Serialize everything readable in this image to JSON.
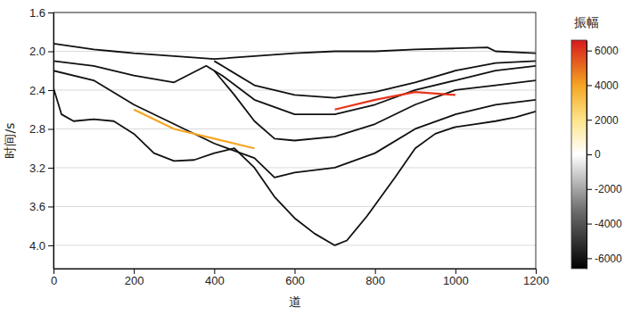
{
  "chart_data": {
    "type": "line",
    "x_label": "道",
    "y_label": "时间/s",
    "xlim": [
      0,
      1200
    ],
    "ylim": [
      1.6,
      4.24
    ],
    "xticks": [
      0,
      200,
      400,
      600,
      800,
      1000,
      1200
    ],
    "yticks": [
      1.6,
      {
        "value": 2,
        "label": "2.0"
      },
      2.4,
      2.8,
      3.2,
      3.6,
      {
        "value": 4,
        "label": "4.0"
      }
    ],
    "grid": true,
    "series": [
      {
        "color": "#111111",
        "line_style": "solid",
        "x": [
          0,
          50,
          100,
          150,
          200,
          300,
          400,
          500,
          600,
          700,
          800,
          900,
          1000,
          1080,
          1100,
          1200
        ],
        "values": [
          1.92,
          1.95,
          1.98,
          2.0,
          2.02,
          2.05,
          2.08,
          2.05,
          2.02,
          2.0,
          2.0,
          1.98,
          1.97,
          1.96,
          2.0,
          2.02
        ]
      },
      {
        "color": "#111111",
        "line_style": "solid",
        "x": [
          0,
          20,
          50,
          100,
          150,
          200,
          250,
          300,
          350,
          400,
          450,
          500,
          550,
          600,
          650,
          700,
          730,
          780,
          850,
          900,
          950,
          1000,
          1050,
          1100,
          1150,
          1200
        ],
        "values": [
          2.38,
          2.65,
          2.72,
          2.7,
          2.72,
          2.85,
          3.05,
          3.13,
          3.12,
          3.05,
          3.0,
          3.2,
          3.5,
          3.72,
          3.88,
          4.0,
          3.95,
          3.7,
          3.3,
          3.0,
          2.85,
          2.78,
          2.75,
          2.72,
          2.68,
          2.62
        ]
      },
      {
        "color": "#111111",
        "line_style": "solid",
        "x": [
          0,
          100,
          200,
          300,
          400,
          500,
          550,
          600,
          700,
          800,
          900,
          1000,
          1100,
          1200
        ],
        "values": [
          2.2,
          2.3,
          2.55,
          2.75,
          2.95,
          3.1,
          3.3,
          3.25,
          3.2,
          3.05,
          2.8,
          2.65,
          2.55,
          2.5
        ]
      },
      {
        "color": "#111111",
        "line_style": "solid",
        "x": [
          400,
          450,
          500,
          550,
          600,
          700,
          800,
          900,
          1000,
          1100,
          1200
        ],
        "values": [
          2.2,
          2.45,
          2.72,
          2.9,
          2.92,
          2.88,
          2.75,
          2.55,
          2.4,
          2.35,
          2.3
        ]
      },
      {
        "color": "#111111",
        "line_style": "solid",
        "x": [
          0,
          100,
          200,
          300,
          380,
          420,
          500,
          600,
          700,
          800,
          900,
          1000,
          1100,
          1200
        ],
        "values": [
          2.1,
          2.15,
          2.25,
          2.32,
          2.15,
          2.25,
          2.5,
          2.65,
          2.65,
          2.55,
          2.4,
          2.3,
          2.2,
          2.15
        ]
      },
      {
        "color": "#111111",
        "line_style": "solid",
        "x": [
          400,
          500,
          600,
          700,
          800,
          900,
          1000,
          1100,
          1200
        ],
        "values": [
          2.1,
          2.35,
          2.45,
          2.48,
          2.42,
          2.32,
          2.2,
          2.12,
          2.1
        ]
      },
      {
        "color": "#e8341c",
        "line_style": "solid",
        "x": [
          700,
          800,
          900,
          1000
        ],
        "values": [
          2.6,
          2.5,
          2.42,
          2.45
        ]
      },
      {
        "color": "#f5a623",
        "line_style": "solid",
        "x": [
          200,
          300,
          400,
          500
        ],
        "values": [
          2.6,
          2.8,
          2.9,
          3.0
        ]
      }
    ],
    "colorbar": {
      "label": "振幅",
      "range": [
        -6600,
        6600
      ],
      "ticks": [
        -6000,
        -4000,
        -2000,
        0,
        2000,
        4000,
        6000
      ]
    }
  }
}
